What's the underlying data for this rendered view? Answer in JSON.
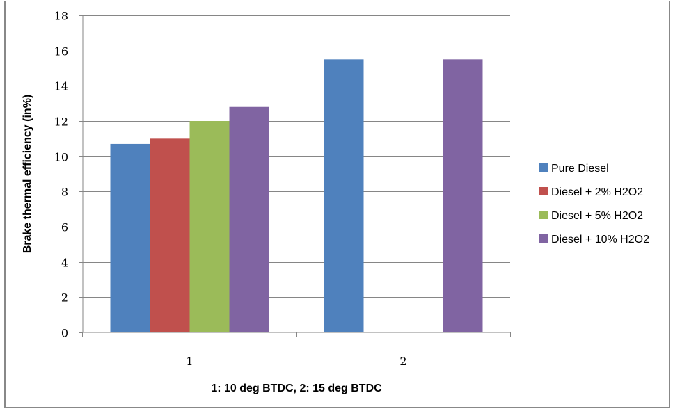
{
  "chart_data": {
    "type": "bar",
    "categories": [
      "1",
      "2"
    ],
    "series": [
      {
        "name": "Pure Diesel",
        "values": [
          10.7,
          15.5
        ],
        "color": "#4f81bd"
      },
      {
        "name": "Diesel + 2% H2O2",
        "values": [
          11.0,
          null
        ],
        "color": "#c0504d"
      },
      {
        "name": "Diesel + 5% H2O2",
        "values": [
          12.0,
          null
        ],
        "color": "#9bbb59"
      },
      {
        "name": "Diesel + 10% H2O2",
        "values": [
          12.8,
          15.5
        ],
        "color": "#8064a2"
      }
    ],
    "title": "",
    "xlabel": "1: 10 deg BTDC, 2: 15 deg BTDC",
    "ylabel": "Brake thermal efficiency (in%)",
    "ylim": [
      0,
      18
    ],
    "yticks": [
      0,
      2,
      4,
      6,
      8,
      10,
      12,
      14,
      16,
      18
    ],
    "grid": true,
    "legend_position": "right"
  }
}
